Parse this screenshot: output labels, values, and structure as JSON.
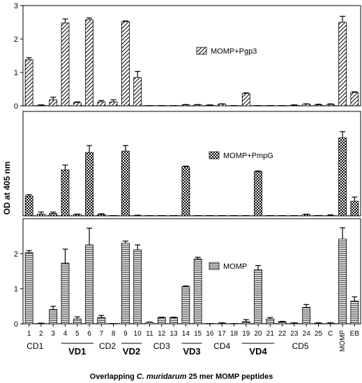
{
  "chart_data": {
    "type": "bar",
    "ylabel": "OD at 405 nm",
    "xlabel": {
      "prefix": "Overlapping ",
      "italic": "C. muridarum",
      "suffix": " 25 mer MOMP peptides"
    },
    "categories": [
      "1",
      "2",
      "3",
      "4",
      "5",
      "6",
      "7",
      "8",
      "9",
      "10",
      "11",
      "12",
      "13",
      "14",
      "15",
      "16",
      "17",
      "18",
      "19",
      "20",
      "21",
      "22",
      "23",
      "24",
      "25",
      "C",
      "MOMP",
      "EB"
    ],
    "regions": [
      {
        "label": "CD1",
        "from": 1,
        "to": 2,
        "bold": false
      },
      {
        "label": "VD1",
        "from": 4,
        "to": 6,
        "bold": true
      },
      {
        "label": "CD2",
        "from": 7,
        "to": 8,
        "bold": false
      },
      {
        "label": "VD2",
        "from": 9,
        "to": 10,
        "bold": true
      },
      {
        "label": "CD3",
        "from": 11,
        "to": 13,
        "bold": false
      },
      {
        "label": "VD3",
        "from": 14,
        "to": 15,
        "bold": true
      },
      {
        "label": "CD4",
        "from": 16,
        "to": 18,
        "bold": false
      },
      {
        "label": "VD4",
        "from": 19,
        "to": 21,
        "bold": true
      },
      {
        "label": "CD5",
        "from": 22,
        "to": 25,
        "bold": false
      }
    ],
    "panels": [
      {
        "name": "MOMP+Pgp3",
        "pattern": "diagonal",
        "ylim": [
          0,
          3
        ],
        "yticks": [
          0,
          1,
          2,
          3
        ],
        "values": [
          1.38,
          0.02,
          0.18,
          2.48,
          0.1,
          2.58,
          0.12,
          0.12,
          2.52,
          0.85,
          0,
          0,
          0,
          0.03,
          0.03,
          0.02,
          0.05,
          0,
          0.37,
          0,
          0,
          0,
          0.02,
          0.05,
          0.03,
          0.04,
          2.5,
          0.4
        ],
        "errors": [
          0.06,
          0.01,
          0.08,
          0.12,
          0.02,
          0.05,
          0.04,
          0.06,
          0.02,
          0.18,
          0,
          0,
          0,
          0.01,
          0.01,
          0.01,
          0.01,
          0,
          0.02,
          0,
          0,
          0,
          0.01,
          0.01,
          0.02,
          0.02,
          0.18,
          0.02
        ]
      },
      {
        "name": "MOMP+PmpG",
        "pattern": "checker",
        "ylim": [
          0,
          3
        ],
        "yticks": [],
        "values": [
          0.57,
          0.05,
          0.07,
          1.32,
          0.04,
          1.82,
          0.04,
          0,
          1.86,
          0.01,
          0,
          0,
          0,
          1.41,
          0,
          0,
          0,
          0,
          0,
          1.27,
          0,
          0,
          0,
          0.04,
          0,
          0.01,
          2.24,
          0.42
        ],
        "errors": [
          0.04,
          0.06,
          0.04,
          0.14,
          0.01,
          0.2,
          0.02,
          0,
          0.16,
          0.01,
          0,
          0,
          0,
          0.02,
          0,
          0,
          0,
          0,
          0,
          0.02,
          0,
          0,
          0,
          0.01,
          0.01,
          0.02,
          0.18,
          0.12
        ]
      },
      {
        "name": "MOMP",
        "pattern": "horizontal",
        "ylim": [
          0,
          3
        ],
        "yticks": [
          0,
          1,
          2
        ],
        "values": [
          2.03,
          0.01,
          0.41,
          1.73,
          0.14,
          2.25,
          0.18,
          0,
          2.3,
          2.11,
          0.04,
          0.18,
          0.18,
          1.06,
          1.85,
          0,
          0.02,
          0,
          0.06,
          1.54,
          0.14,
          0.06,
          0.02,
          0.47,
          0.02,
          0.02,
          2.42,
          0.65
        ],
        "errors": [
          0.06,
          0.01,
          0.09,
          0.4,
          0.06,
          0.48,
          0.06,
          0,
          0.06,
          0.14,
          0.01,
          0.01,
          0.01,
          0.02,
          0.05,
          0,
          0.01,
          0,
          0.06,
          0.12,
          0.04,
          0.01,
          0.01,
          0.08,
          0.01,
          0.01,
          0.32,
          0.12
        ]
      }
    ]
  }
}
